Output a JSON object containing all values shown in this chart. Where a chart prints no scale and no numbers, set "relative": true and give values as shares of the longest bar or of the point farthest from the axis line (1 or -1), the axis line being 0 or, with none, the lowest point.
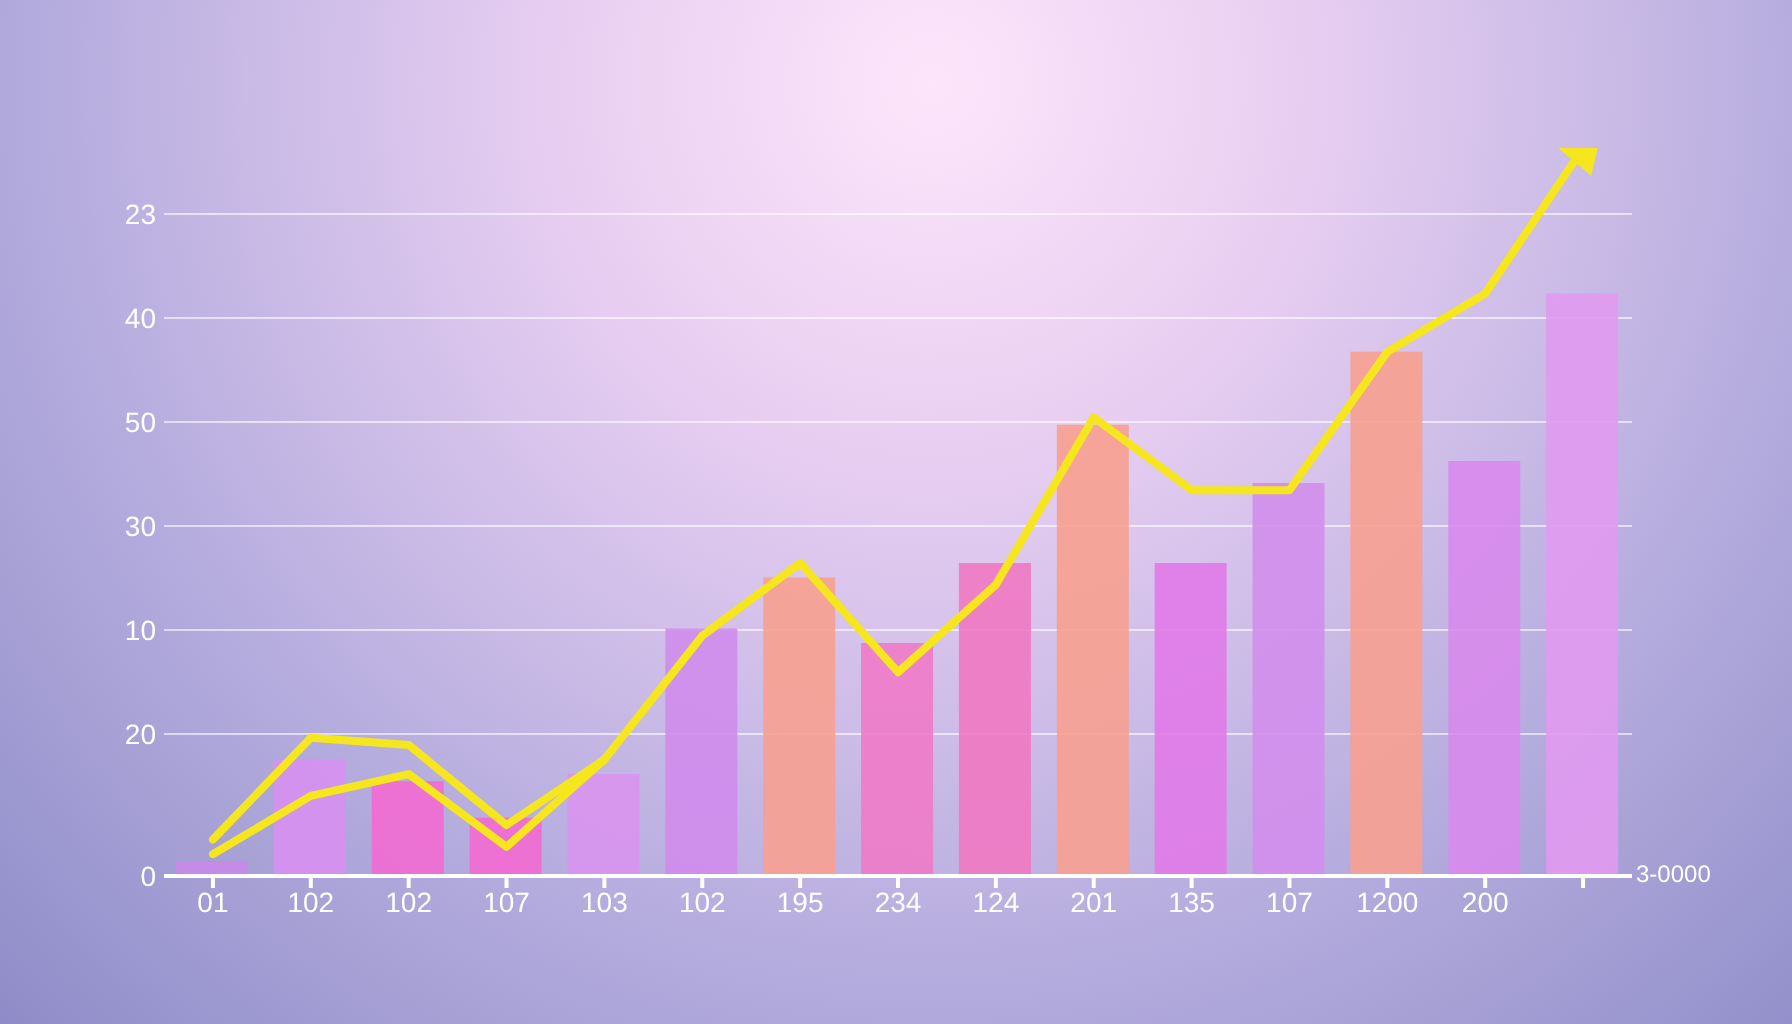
{
  "chart_data": {
    "type": "bar",
    "relative": true,
    "categories": [
      "01",
      "102",
      "102",
      "107",
      "103",
      "102",
      "195",
      "234",
      "124",
      "201",
      "135",
      "107",
      "1200",
      "200",
      null
    ],
    "series": [
      {
        "colors": [
          "#c88ae6",
          "#d690f0",
          "#f26ad2",
          "#f26ad2",
          "#d894ee",
          "#cf8cec",
          "#f7a090",
          "#f07ac8",
          "#ef78c2",
          "#f7a090",
          "#e07ae8",
          "#d28eec",
          "#f7a090",
          "#d88aec",
          "#e19af0"
        ],
        "values": [
          0.02,
          0.16,
          0.13,
          0.08,
          0.14,
          0.34,
          0.41,
          0.32,
          0.43,
          0.62,
          0.43,
          0.54,
          0.72,
          0.57,
          0.8
        ]
      },
      {
        "type": "line",
        "color": "#f5e61e",
        "values": [
          0.05,
          0.19,
          0.18,
          0.07,
          0.16,
          0.33,
          0.43,
          0.28,
          0.4,
          0.63,
          0.53,
          0.53,
          0.72,
          0.8,
          1
        ]
      },
      {
        "type": "line",
        "color": "#f5e61e",
        "values": [
          0.03,
          0.11,
          0.14,
          0.04,
          0.16,
          null,
          null,
          null,
          null,
          null,
          null,
          null,
          null,
          null,
          null
        ]
      }
    ],
    "grid": "y",
    "annotations": [
      "23",
      "40",
      "50",
      "30",
      "10",
      "20",
      "0",
      "3-0000"
    ]
  }
}
